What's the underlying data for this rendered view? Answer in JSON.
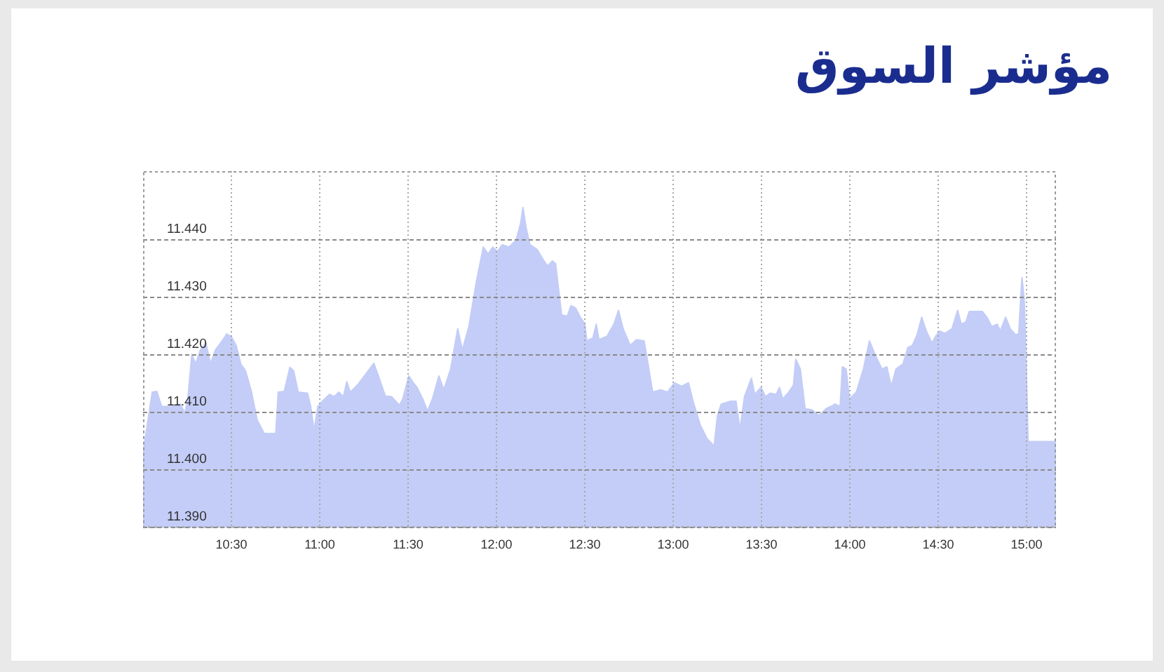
{
  "chart_data": {
    "type": "area",
    "title": "مؤشر السوق",
    "x": [
      10.0,
      10.052,
      10.078,
      10.105,
      10.158,
      10.211,
      10.237,
      10.255,
      10.276,
      10.298,
      10.324,
      10.356,
      10.382,
      10.409,
      10.448,
      10.474,
      10.5,
      10.527,
      10.553,
      10.58,
      10.614,
      10.646,
      10.686,
      10.751,
      10.765,
      10.799,
      10.831,
      10.852,
      10.878,
      10.931,
      10.949,
      10.968,
      10.989,
      11.015,
      11.055,
      11.082,
      11.108,
      11.134,
      11.153,
      11.173,
      11.213,
      11.253,
      11.306,
      11.332,
      11.371,
      11.406,
      11.451,
      11.47,
      11.504,
      11.53,
      11.551,
      11.583,
      11.61,
      11.638,
      11.674,
      11.702,
      11.741,
      11.781,
      11.807,
      11.844,
      11.886,
      11.926,
      11.953,
      11.979,
      12.005,
      12.032,
      12.071,
      12.111,
      12.137,
      12.15,
      12.169,
      12.19,
      12.23,
      12.269,
      12.29,
      12.317,
      12.335,
      12.369,
      12.401,
      12.422,
      12.448,
      12.475,
      12.501,
      12.511,
      12.546,
      12.565,
      12.58,
      12.626,
      12.665,
      12.691,
      12.717,
      12.757,
      12.792,
      12.836,
      12.863,
      12.884,
      12.929,
      12.968,
      13.008,
      13.048,
      13.087,
      13.113,
      13.153,
      13.192,
      13.232,
      13.251,
      13.272,
      13.325,
      13.356,
      13.378,
      13.404,
      13.443,
      13.462,
      13.497,
      13.523,
      13.549,
      13.583,
      13.602,
      13.62,
      13.655,
      13.681,
      13.694,
      13.72,
      13.747,
      13.786,
      13.826,
      13.865,
      13.918,
      13.945,
      13.958,
      13.979,
      13.998,
      14.037,
      14.077,
      14.111,
      14.143,
      14.182,
      14.209,
      14.235,
      14.261,
      14.301,
      14.328,
      14.354,
      14.38,
      14.407,
      14.433,
      14.465,
      14.486,
      14.507,
      14.538,
      14.578,
      14.61,
      14.631,
      14.657,
      14.676,
      14.75,
      14.776,
      14.803,
      14.835,
      14.851,
      14.882,
      14.908,
      14.94,
      14.956,
      14.974,
      14.987,
      14.995,
      15.009,
      15.167
    ],
    "values": [
      11.403,
      11.4136,
      11.4137,
      11.4111,
      11.4111,
      11.4115,
      11.4099,
      11.4128,
      11.4201,
      11.4185,
      11.4209,
      11.4221,
      11.4185,
      11.4209,
      11.4225,
      11.4237,
      11.4232,
      11.4217,
      11.4185,
      11.4173,
      11.4136,
      11.4087,
      11.4064,
      11.4064,
      11.4136,
      11.4137,
      11.4179,
      11.4173,
      11.4136,
      11.4134,
      11.4111,
      11.4069,
      11.4111,
      11.412,
      11.4132,
      11.4128,
      11.4136,
      11.4128,
      11.4154,
      11.4136,
      11.4148,
      11.4164,
      11.4186,
      11.4164,
      11.4129,
      11.4128,
      11.4113,
      11.4124,
      11.4164,
      11.4152,
      11.4144,
      11.4124,
      11.4103,
      11.4124,
      11.4164,
      11.414,
      11.4176,
      11.4246,
      11.4209,
      11.425,
      11.4327,
      11.4388,
      11.4376,
      11.4388,
      11.438,
      11.4392,
      11.4388,
      11.44,
      11.4429,
      11.4457,
      11.442,
      11.4392,
      11.4384,
      11.4364,
      11.4355,
      11.4364,
      11.4359,
      11.427,
      11.4268,
      11.4286,
      11.4282,
      11.4266,
      11.4254,
      11.4225,
      11.423,
      11.4254,
      11.4227,
      11.4233,
      11.4254,
      11.4278,
      11.4246,
      11.4217,
      11.4227,
      11.4225,
      11.4176,
      11.4136,
      11.414,
      11.4136,
      11.4152,
      11.4146,
      11.4152,
      11.412,
      11.4079,
      11.4055,
      11.4042,
      11.4095,
      11.4115,
      11.412,
      11.412,
      11.4071,
      11.4128,
      11.416,
      11.4132,
      11.4144,
      11.4128,
      11.4134,
      11.4132,
      11.4144,
      11.4124,
      11.4136,
      11.4148,
      11.4193,
      11.4176,
      11.4107,
      11.4105,
      11.4095,
      11.4107,
      11.4115,
      11.4111,
      11.418,
      11.4176,
      11.4124,
      11.4136,
      11.4176,
      11.4225,
      11.4201,
      11.4176,
      11.418,
      11.4146,
      11.4176,
      11.4185,
      11.4213,
      11.4217,
      11.4235,
      11.4266,
      11.4242,
      11.4221,
      11.4233,
      11.4242,
      11.4238,
      11.4246,
      11.4278,
      11.4254,
      11.4258,
      11.4276,
      11.4276,
      11.4266,
      11.425,
      11.4254,
      11.4242,
      11.4266,
      11.4246,
      11.4235,
      11.4238,
      11.4335,
      11.4298,
      11.4225,
      11.405,
      11.405
    ],
    "color": "#c3cdf7",
    "xlim": [
      10,
      15.167
    ],
    "xticks": [
      {
        "value": 10.5,
        "label": "10:30"
      },
      {
        "value": 11,
        "label": "11:00"
      },
      {
        "value": 11.5,
        "label": "11:30"
      },
      {
        "value": 12,
        "label": "12:00"
      },
      {
        "value": 12.5,
        "label": "12:30"
      },
      {
        "value": 13,
        "label": "13:00"
      },
      {
        "value": 13.5,
        "label": "13:30"
      },
      {
        "value": 14,
        "label": "14:00"
      },
      {
        "value": 14.5,
        "label": "14:30"
      },
      {
        "value": 15,
        "label": "15:00"
      }
    ],
    "ylim": [
      11.39,
      11.452
    ],
    "yticks": [
      {
        "value": 11.39,
        "label": "11.390"
      },
      {
        "value": 11.4,
        "label": "11.400"
      },
      {
        "value": 11.41,
        "label": "11.410"
      },
      {
        "value": 11.42,
        "label": "11.420"
      },
      {
        "value": 11.43,
        "label": "11.430"
      },
      {
        "value": 11.44,
        "label": "11.440"
      }
    ],
    "grid": true
  }
}
